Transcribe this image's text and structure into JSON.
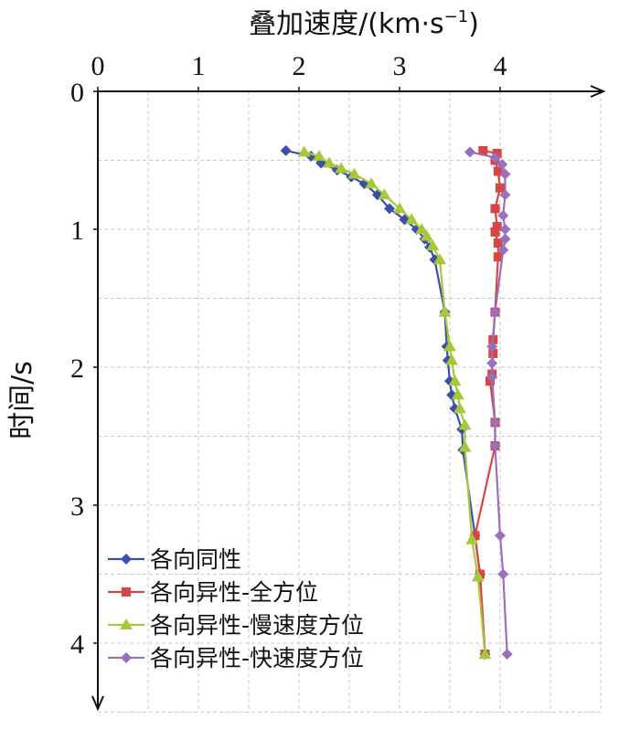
{
  "chart_data": {
    "type": "line",
    "title": "",
    "xlabel": "叠加速度/(km·s",
    "xlabel_sup": "−1",
    "xlabel_end": ")",
    "ylabel": "时间/s",
    "x_axis_position": "top",
    "y_axis_inverted": true,
    "xlim": [
      0,
      5
    ],
    "ylim": [
      0,
      4.5
    ],
    "xticks": [
      0,
      1,
      2,
      3,
      4
    ],
    "xtick_labels": [
      "0",
      "1",
      "2",
      "3",
      "4"
    ],
    "yticks": [
      0,
      1,
      2,
      3,
      4
    ],
    "ytick_labels": [
      "0",
      "1",
      "2",
      "3",
      "4"
    ],
    "grid": true,
    "legend_position": "bottom-left",
    "series": [
      {
        "name": "各向同性",
        "color": "#3a4fa8",
        "marker": "diamond",
        "points": [
          [
            1.87,
            0.43
          ],
          [
            2.12,
            0.47
          ],
          [
            2.22,
            0.52
          ],
          [
            2.38,
            0.57
          ],
          [
            2.52,
            0.62
          ],
          [
            2.65,
            0.67
          ],
          [
            2.78,
            0.75
          ],
          [
            2.9,
            0.85
          ],
          [
            3.05,
            0.93
          ],
          [
            3.17,
            1.0
          ],
          [
            3.25,
            1.07
          ],
          [
            3.3,
            1.13
          ],
          [
            3.35,
            1.22
          ],
          [
            3.45,
            1.6
          ],
          [
            3.47,
            1.85
          ],
          [
            3.48,
            1.95
          ],
          [
            3.5,
            2.1
          ],
          [
            3.52,
            2.2
          ],
          [
            3.55,
            2.3
          ],
          [
            3.62,
            2.45
          ],
          [
            3.63,
            2.6
          ],
          [
            3.75,
            3.22
          ],
          [
            3.8,
            3.5
          ],
          [
            3.85,
            4.08
          ]
        ]
      },
      {
        "name": "各向异性-全方位",
        "color": "#d84545",
        "marker": "square",
        "points": [
          [
            3.83,
            0.43
          ],
          [
            3.97,
            0.45
          ],
          [
            3.95,
            0.5
          ],
          [
            3.98,
            0.58
          ],
          [
            4.0,
            0.7
          ],
          [
            3.95,
            0.85
          ],
          [
            3.97,
            0.98
          ],
          [
            3.95,
            1.02
          ],
          [
            3.98,
            1.1
          ],
          [
            3.98,
            1.2
          ],
          [
            3.95,
            1.6
          ],
          [
            3.93,
            1.8
          ],
          [
            3.93,
            1.9
          ],
          [
            3.92,
            2.05
          ],
          [
            3.9,
            2.1
          ],
          [
            3.95,
            2.4
          ],
          [
            3.95,
            2.57
          ],
          [
            3.75,
            3.22
          ],
          [
            3.8,
            3.5
          ],
          [
            3.85,
            4.08
          ]
        ]
      },
      {
        "name": "各向异性-慢速度方位",
        "color": "#a6c83a",
        "marker": "triangle",
        "points": [
          [
            2.05,
            0.44
          ],
          [
            2.2,
            0.47
          ],
          [
            2.3,
            0.52
          ],
          [
            2.42,
            0.56
          ],
          [
            2.55,
            0.6
          ],
          [
            2.72,
            0.67
          ],
          [
            2.85,
            0.75
          ],
          [
            3.0,
            0.85
          ],
          [
            3.12,
            0.93
          ],
          [
            3.22,
            1.0
          ],
          [
            3.27,
            1.05
          ],
          [
            3.33,
            1.12
          ],
          [
            3.4,
            1.22
          ],
          [
            3.45,
            1.6
          ],
          [
            3.5,
            1.85
          ],
          [
            3.52,
            1.95
          ],
          [
            3.55,
            2.1
          ],
          [
            3.58,
            2.2
          ],
          [
            3.6,
            2.3
          ],
          [
            3.65,
            2.42
          ],
          [
            3.65,
            2.58
          ],
          [
            3.72,
            3.25
          ],
          [
            3.78,
            3.52
          ],
          [
            3.85,
            4.08
          ]
        ]
      },
      {
        "name": "各向异性-快速度方位",
        "color": "#9b6fba",
        "marker": "diamond",
        "points": [
          [
            3.7,
            0.44
          ],
          [
            3.95,
            0.48
          ],
          [
            4.02,
            0.53
          ],
          [
            4.05,
            0.6
          ],
          [
            4.05,
            0.75
          ],
          [
            4.03,
            0.9
          ],
          [
            4.05,
            1.0
          ],
          [
            4.05,
            1.07
          ],
          [
            4.03,
            1.15
          ],
          [
            3.95,
            1.6
          ],
          [
            3.92,
            1.85
          ],
          [
            3.92,
            1.97
          ],
          [
            3.92,
            2.07
          ],
          [
            3.95,
            2.4
          ],
          [
            3.95,
            2.57
          ],
          [
            4.0,
            3.22
          ],
          [
            4.03,
            3.5
          ],
          [
            4.07,
            4.08
          ]
        ]
      }
    ]
  }
}
